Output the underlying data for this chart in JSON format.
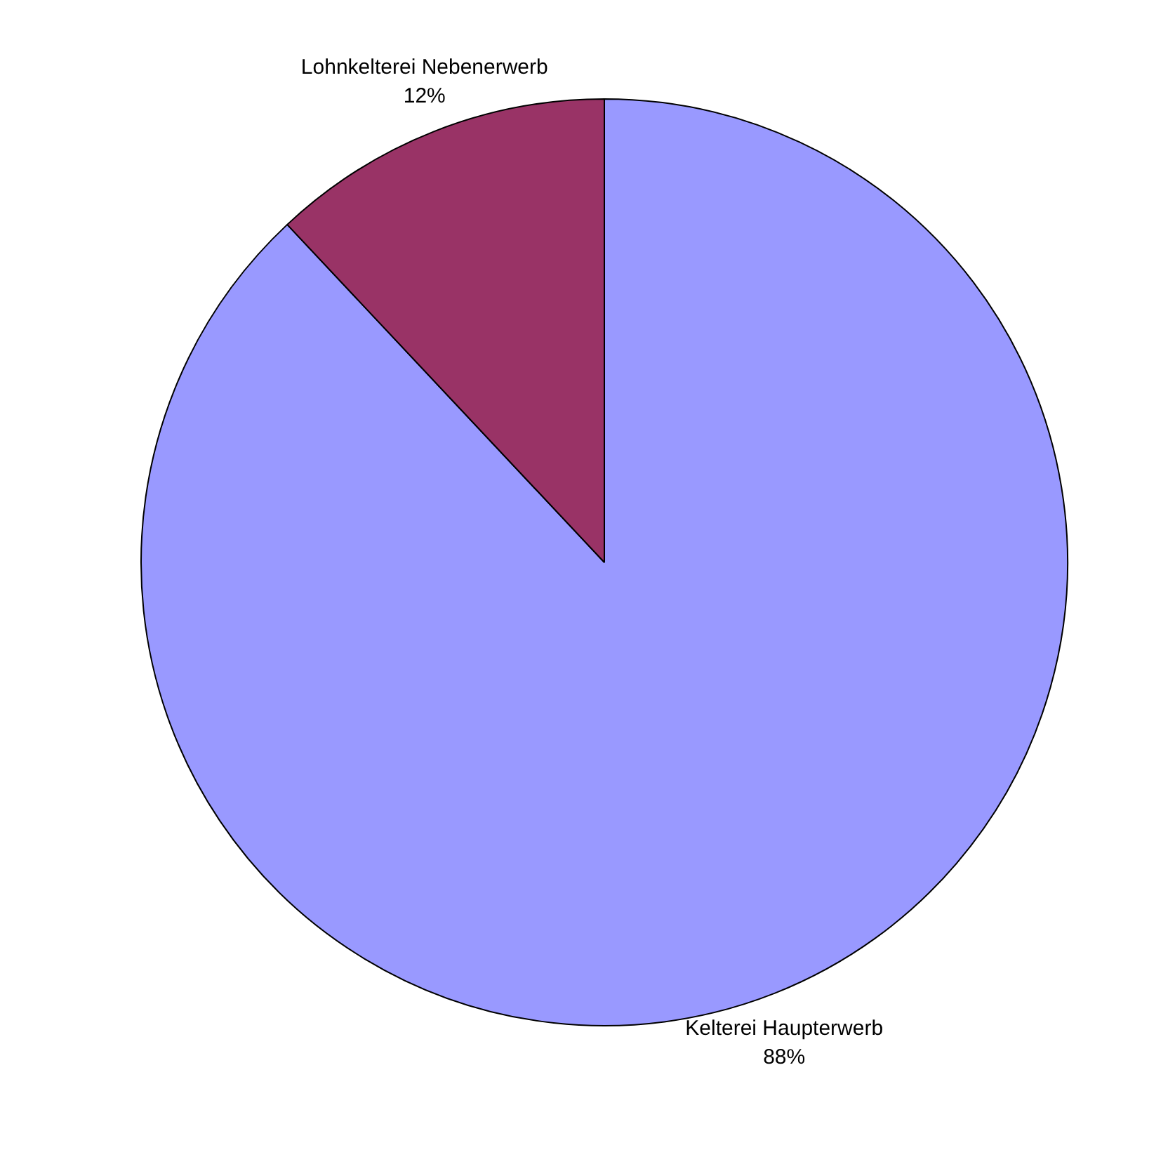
{
  "chart_data": {
    "type": "pie",
    "categories": [
      "Kelterei Haupterwerb",
      "Lohnkelterei Nebenerwerb"
    ],
    "values": [
      88,
      12
    ],
    "value_labels": [
      "88%",
      "12%"
    ],
    "colors": [
      "#9999ff",
      "#993366"
    ]
  }
}
